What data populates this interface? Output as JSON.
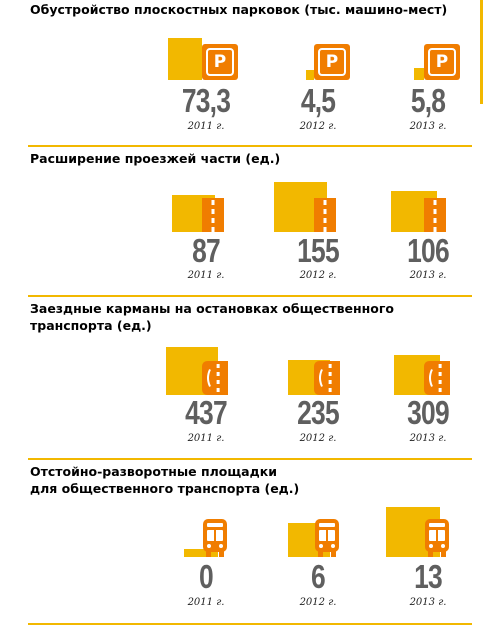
{
  "sections": [
    {
      "title": "Обустройство плоскостных парковок (тыс. машино-мест)",
      "icon": "parking-icon",
      "items": [
        {
          "value": "73,3",
          "year": "2011 г."
        },
        {
          "value": "4,5",
          "year": "2012 г."
        },
        {
          "value": "5,8",
          "year": "2013 г."
        }
      ]
    },
    {
      "title": "Расширение проезжей части (ед.)",
      "icon": "road-lane-icon",
      "items": [
        {
          "value": "87",
          "year": "2011 г."
        },
        {
          "value": "155",
          "year": "2012 г."
        },
        {
          "value": "106",
          "year": "2013 г."
        }
      ]
    },
    {
      "title_lines": [
        "Заездные карманы на остановках общественного",
        "транспорта (ед.)"
      ],
      "icon": "bus-bay-icon",
      "items": [
        {
          "value": "437",
          "year": "2011 г."
        },
        {
          "value": "235",
          "year": "2012 г."
        },
        {
          "value": "309",
          "year": "2013 г."
        }
      ]
    },
    {
      "title_lines": [
        "Отстойно-разворотные площадки",
        "для общественного транспорта (ед.)"
      ],
      "icon": "bus-icon",
      "items": [
        {
          "value": "0",
          "year": "2011 г."
        },
        {
          "value": "6",
          "year": "2012 г."
        },
        {
          "value": "13",
          "year": "2013 г."
        }
      ]
    }
  ],
  "parking_letter": "P",
  "chart_data": [
    {
      "type": "bar",
      "title": "Обустройство плоскостных парковок (тыс. машино-мест)",
      "categories": [
        "2011 г.",
        "2012 г.",
        "2013 г."
      ],
      "values": [
        73.3,
        4.5,
        5.8
      ]
    },
    {
      "type": "bar",
      "title": "Расширение проезжей части (ед.)",
      "categories": [
        "2011 г.",
        "2012 г.",
        "2013 г."
      ],
      "values": [
        87,
        155,
        106
      ]
    },
    {
      "type": "bar",
      "title": "Заездные карманы на остановках общественного транспорта (ед.)",
      "categories": [
        "2011 г.",
        "2012 г.",
        "2013 г."
      ],
      "values": [
        437,
        235,
        309
      ]
    },
    {
      "type": "bar",
      "title": "Отстойно-разворотные площадки для общественного транспорта (ед.)",
      "categories": [
        "2011 г.",
        "2012 г.",
        "2013 г."
      ],
      "values": [
        0,
        6,
        13
      ]
    }
  ],
  "colors": {
    "bar": "#f2b800",
    "icon": "#f07d00",
    "value_text": "#5f5f5f"
  }
}
